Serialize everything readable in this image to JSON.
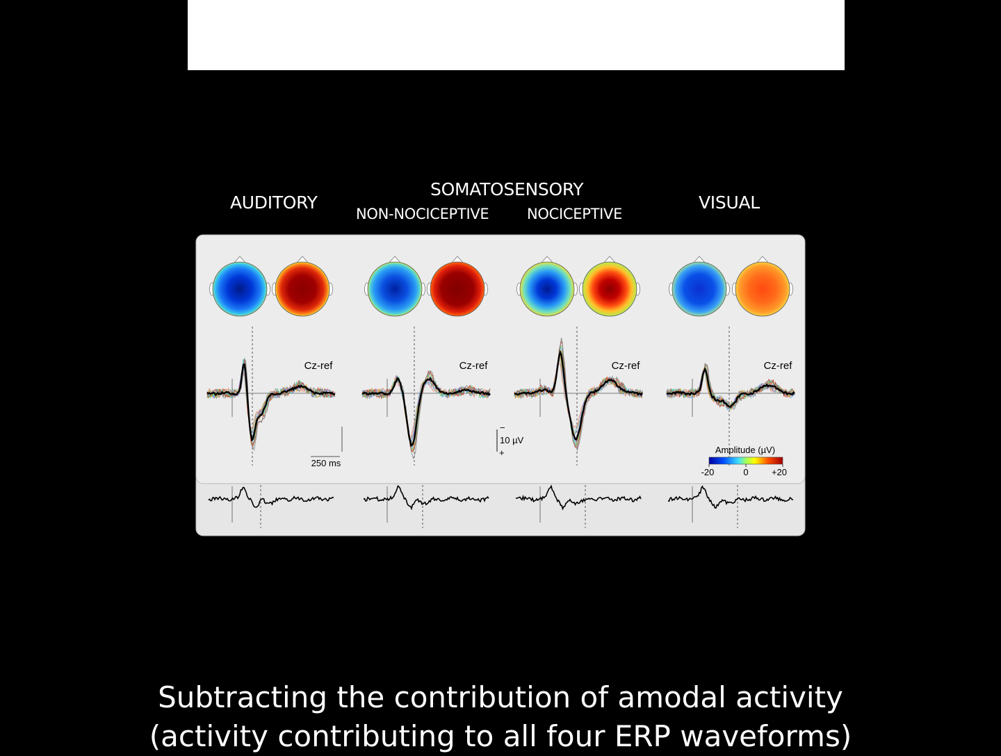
{
  "header": {
    "auditory": "AUDITORY",
    "somatosensory": "SOMATOSENSORY",
    "non_nociceptive": "NON-NOCICEPTIVE",
    "nociceptive": "NOCICEPTIVE",
    "visual": "VISUAL"
  },
  "figure": {
    "reference_label": "Cz-ref",
    "time_scale_label": "250 ms",
    "amplitude_scale": {
      "minus": "−",
      "value": "10 µV",
      "plus": "+"
    },
    "colorbar": {
      "title": "Amplitude (µV)",
      "min_label": "-20",
      "mid_label": "0",
      "max_label": "+20"
    },
    "panels": [
      "auditory",
      "somatosensory-non-nociceptive",
      "somatosensory-nociceptive",
      "visual"
    ]
  },
  "caption": {
    "line1": "Subtracting the contribution of amodal activity",
    "line2": "(activity contributing to all four ERP waveforms)"
  }
}
